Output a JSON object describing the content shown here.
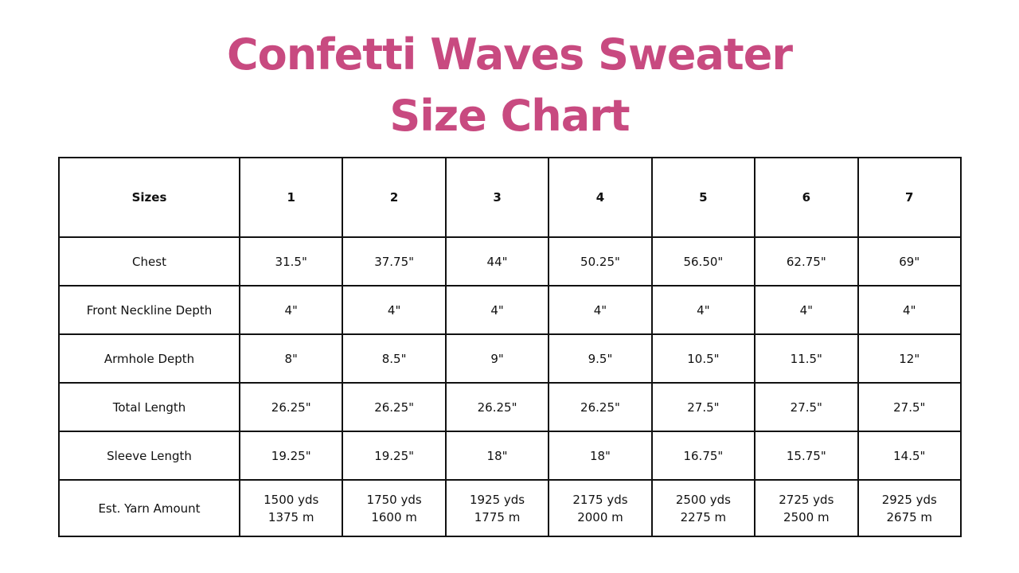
{
  "title": [
    "Confetti Waves Sweater",
    "Size Chart"
  ],
  "table": {
    "header": [
      "Sizes",
      "1",
      "2",
      "3",
      "4",
      "5",
      "6",
      "7"
    ],
    "rows": [
      [
        "Chest",
        "31.5\"",
        "37.75\"",
        "44\"",
        "50.25\"",
        "56.50\"",
        "62.75\"",
        "69\""
      ],
      [
        "Front Neckline Depth",
        "4\"",
        "4\"",
        "4\"",
        "4\"",
        "4\"",
        "4\"",
        "4\""
      ],
      [
        "Armhole Depth",
        "8\"",
        "8.5\"",
        "9\"",
        "9.5\"",
        "10.5\"",
        "11.5\"",
        "12\""
      ],
      [
        "Total Length",
        "26.25\"",
        "26.25\"",
        "26.25\"",
        "26.25\"",
        "27.5\"",
        "27.5\"",
        "27.5\""
      ],
      [
        "Sleeve Length",
        "19.25\"",
        "19.25\"",
        "18\"",
        "18\"",
        "16.75\"",
        "15.75\"",
        "14.5\""
      ],
      [
        "Est. Yarn Amount",
        [
          "1500 yds",
          "1375 m"
        ],
        [
          "1750 yds",
          "1600 m"
        ],
        [
          "1925 yds",
          "1775 m"
        ],
        [
          "2175 yds",
          "2000 m"
        ],
        [
          "2500 yds",
          "2275 m"
        ],
        [
          "2725 yds",
          "2500 m"
        ],
        [
          "2925 yds",
          "2675 m"
        ]
      ]
    ]
  }
}
